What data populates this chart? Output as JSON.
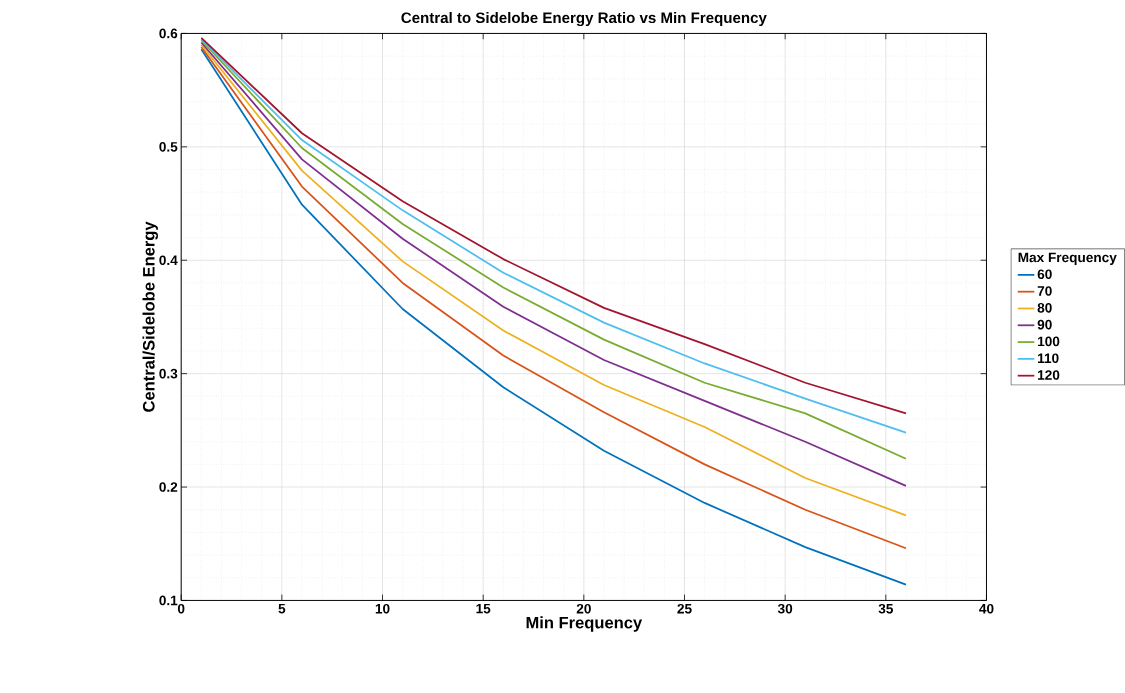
{
  "chart_data": {
    "type": "line",
    "title": "Central to Sidelobe Energy Ratio vs Min Frequency",
    "xlabel": "Min Frequency",
    "ylabel": "Central/Sidelobe Energy",
    "legend_title": "Max Frequency",
    "x": [
      1,
      6,
      11,
      16,
      21,
      26,
      31,
      36
    ],
    "series": [
      {
        "name": "60",
        "color": "#0072bd",
        "values": [
          0.586,
          0.449,
          0.357,
          0.288,
          0.232,
          0.186,
          0.147,
          0.114
        ]
      },
      {
        "name": "70",
        "color": "#d95319",
        "values": [
          0.588,
          0.465,
          0.38,
          0.316,
          0.266,
          0.22,
          0.18,
          0.146
        ]
      },
      {
        "name": "80",
        "color": "#edb120",
        "values": [
          0.59,
          0.479,
          0.399,
          0.338,
          0.29,
          0.253,
          0.208,
          0.175
        ]
      },
      {
        "name": "90",
        "color": "#7e2f8e",
        "values": [
          0.592,
          0.489,
          0.419,
          0.359,
          0.312,
          0.276,
          0.24,
          0.201
        ]
      },
      {
        "name": "100",
        "color": "#77ac30",
        "values": [
          0.594,
          0.499,
          0.432,
          0.376,
          0.33,
          0.292,
          0.265,
          0.225
        ]
      },
      {
        "name": "110",
        "color": "#4dbeee",
        "values": [
          0.595,
          0.506,
          0.444,
          0.389,
          0.345,
          0.309,
          0.278,
          0.248
        ]
      },
      {
        "name": "120",
        "color": "#a2142f",
        "values": [
          0.596,
          0.512,
          0.452,
          0.401,
          0.358,
          0.326,
          0.292,
          0.265
        ]
      }
    ],
    "xlim": [
      0,
      40
    ],
    "ylim": [
      0.1,
      0.6
    ],
    "xticks": [
      0,
      5,
      10,
      15,
      20,
      25,
      30,
      35,
      40
    ],
    "yticks": [
      0.1,
      0.2,
      0.3,
      0.4,
      0.5,
      0.6
    ],
    "grid": true,
    "legend": "right",
    "marker": "none",
    "line_style": "solid"
  }
}
